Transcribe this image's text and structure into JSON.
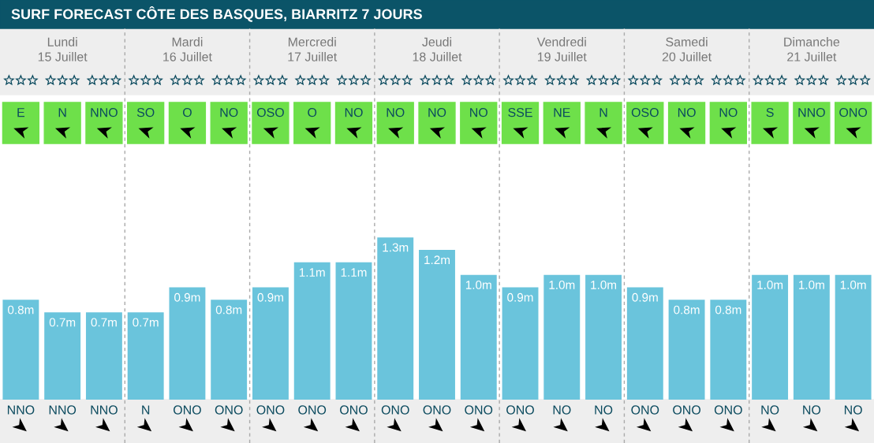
{
  "chart_data": {
    "type": "bar",
    "title": "SURF FORECAST CÔTE DES BASQUES, BIARRITZ 7 JOURS",
    "categories": [
      "NNO",
      "NNO",
      "NNO",
      "N",
      "ONO",
      "ONO",
      "ONO",
      "ONO",
      "ONO",
      "ONO",
      "ONO",
      "ONO",
      "ONO",
      "NO",
      "NO",
      "ONO",
      "ONO",
      "ONO",
      "NO",
      "NO",
      "NO"
    ],
    "values": [
      0.8,
      0.7,
      0.7,
      0.7,
      0.9,
      0.8,
      0.9,
      1.1,
      1.1,
      1.3,
      1.2,
      1.0,
      0.9,
      1.0,
      1.0,
      0.9,
      0.8,
      0.8,
      1.0,
      1.0,
      1.0
    ],
    "value_labels": [
      "0.8m",
      "0.7m",
      "0.7m",
      "0.7m",
      "0.9m",
      "0.8m",
      "0.9m",
      "1.1m",
      "1.1m",
      "1.3m",
      "1.2m",
      "1.0m",
      "0.9m",
      "1.0m",
      "1.0m",
      "0.9m",
      "0.8m",
      "0.8m",
      "1.0m",
      "1.0m",
      "1.0m"
    ],
    "color": "#6ac4dc",
    "annotations": [
      "Lundi\n15 Juillet",
      "Mardi\n16 Juillet",
      "Mercredi\n17 Juillet",
      "Jeudi\n18 Juillet",
      "Vendredi\n19 Juillet",
      "Samedi\n20 Juillet",
      "Dimanche\n21 Juillet",
      "E",
      "N",
      "NNO",
      "SO",
      "O",
      "NO",
      "OSO",
      "O",
      "NO",
      "NO",
      "NO",
      "NO",
      "SSE",
      "NE",
      "N",
      "OSO",
      "NO",
      "NO",
      "S",
      "NNO",
      "ONO"
    ],
    "grid": false
  }
}
